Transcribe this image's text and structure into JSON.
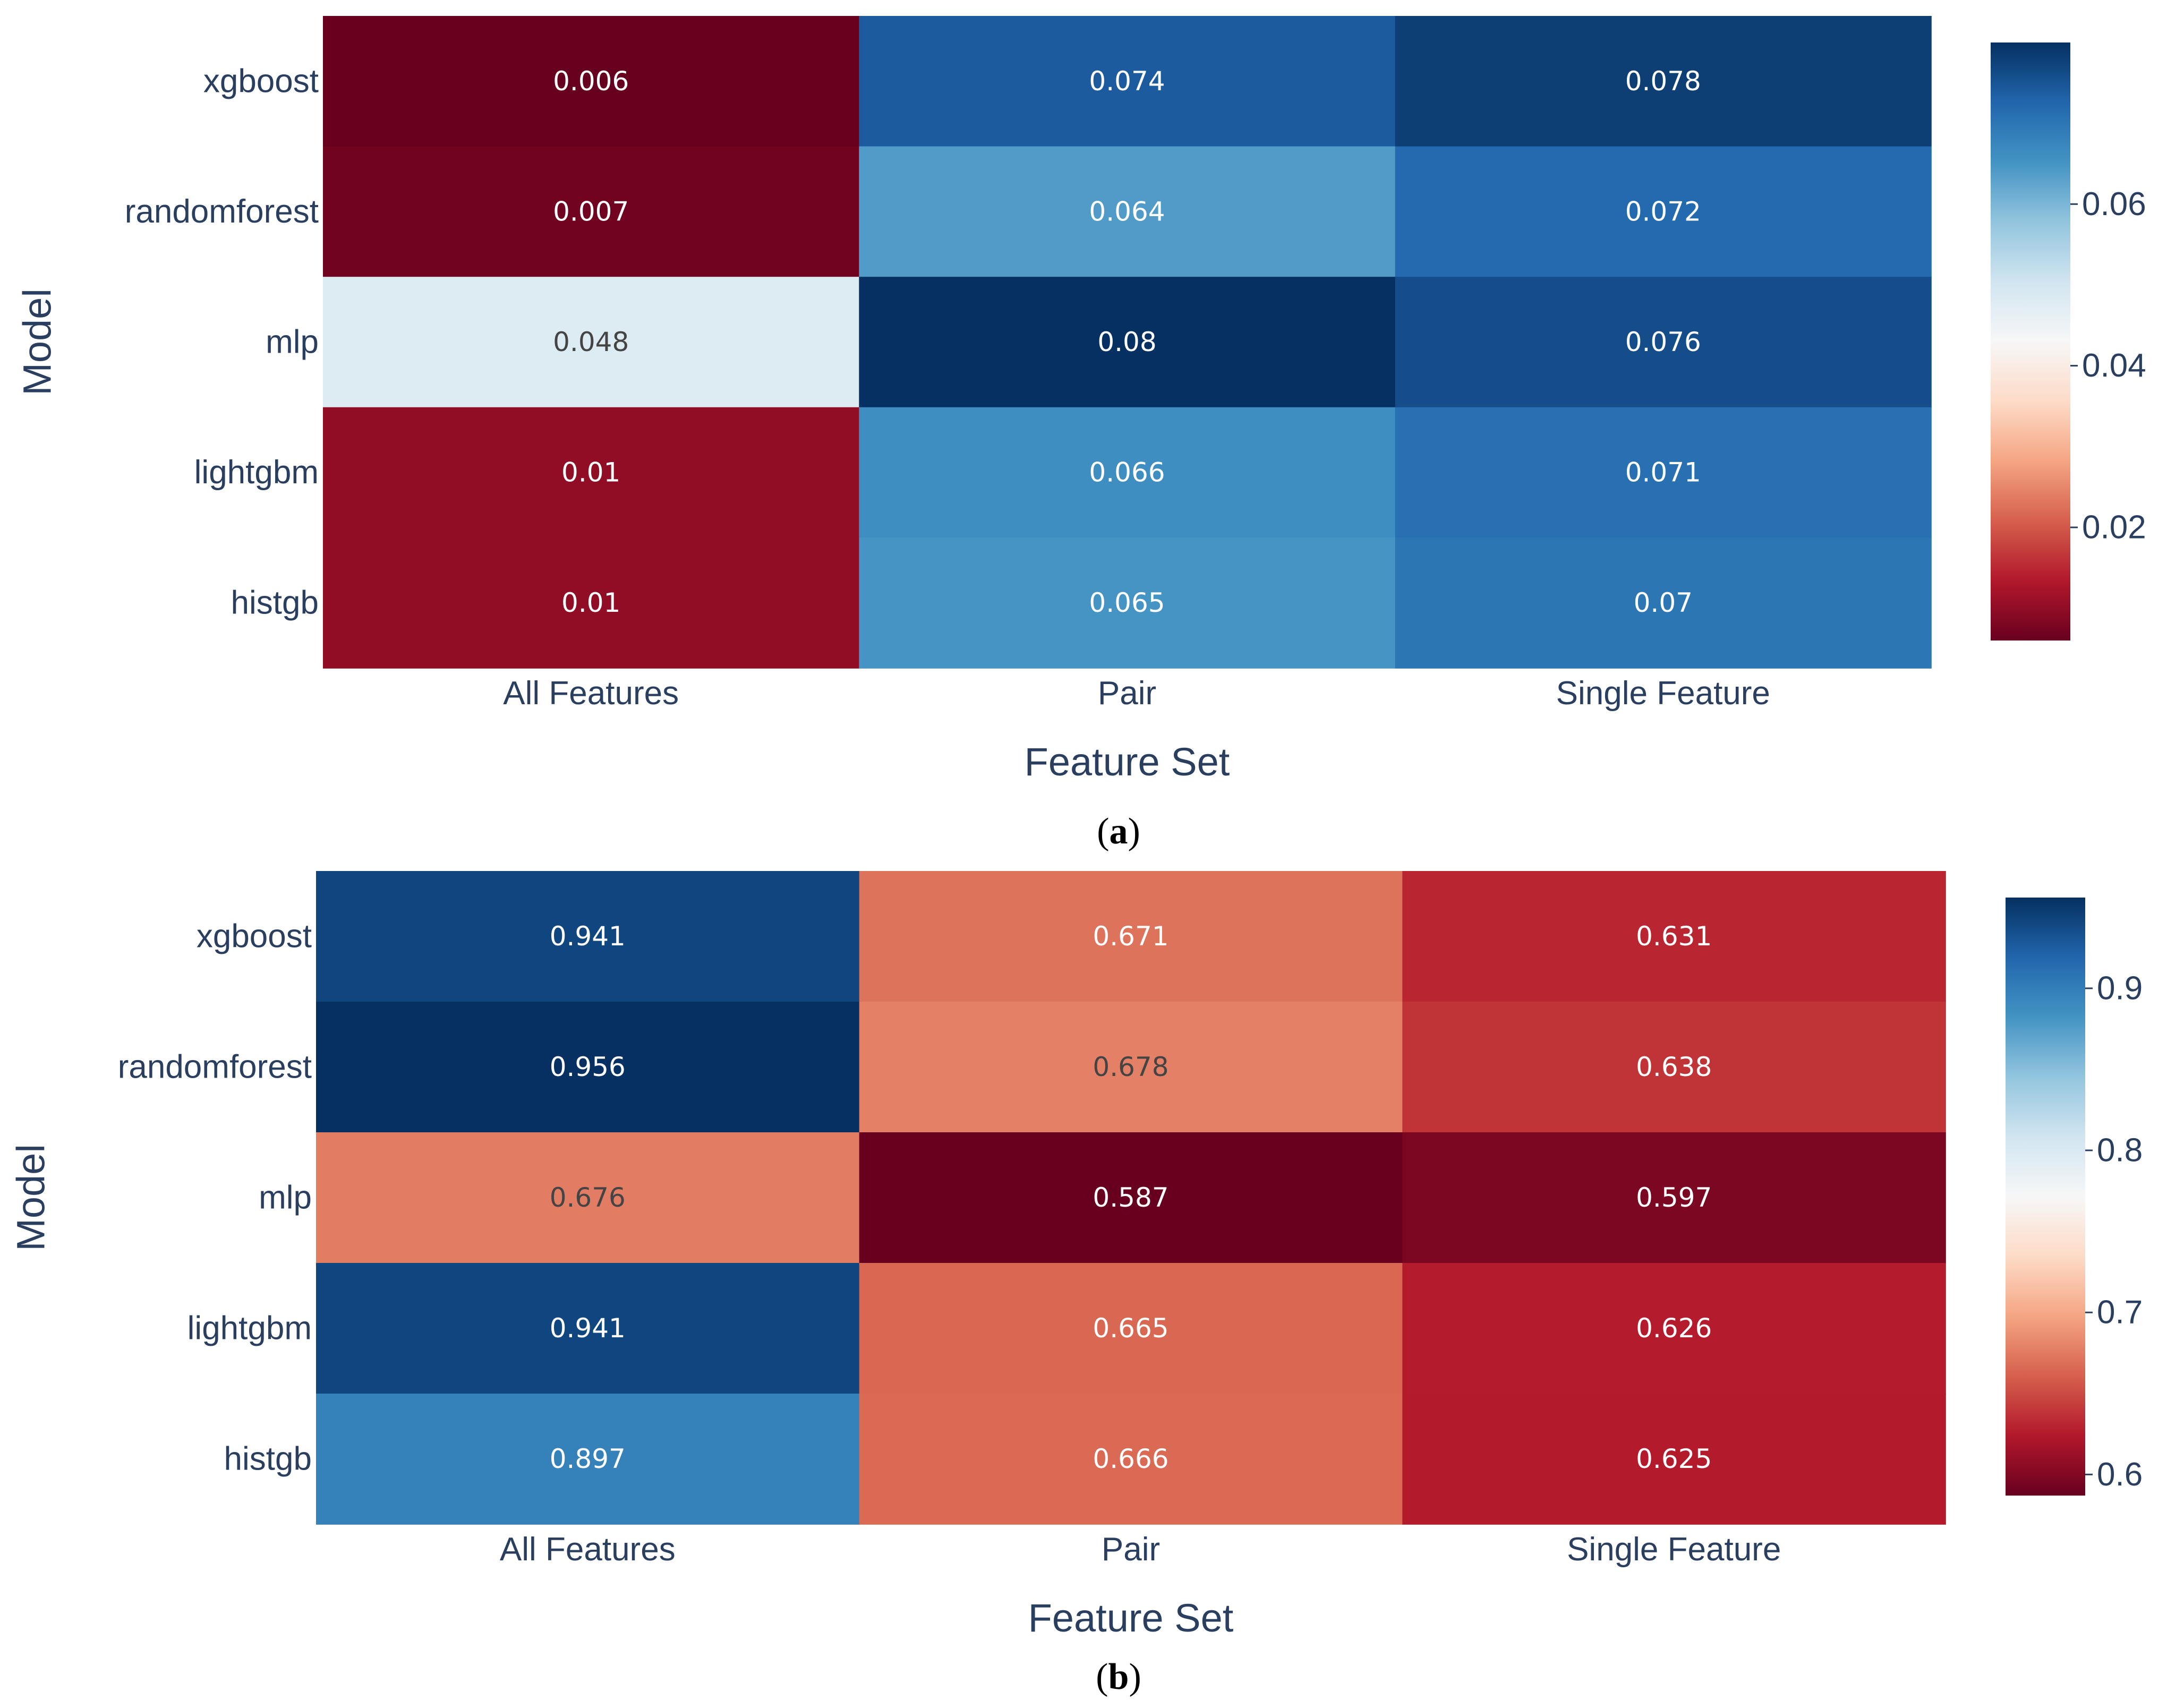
{
  "chart_data": [
    {
      "type": "heatmap",
      "caption_letter": "a",
      "xlabel": "Feature Set",
      "ylabel": "Model",
      "x": [
        "All Features",
        "Pair",
        "Single Feature"
      ],
      "y": [
        "xgboost",
        "randomforest",
        "mlp",
        "lightgbm",
        "histgb"
      ],
      "z": [
        [
          0.006,
          0.074,
          0.078
        ],
        [
          0.007,
          0.064,
          0.072
        ],
        [
          0.048,
          0.08,
          0.076
        ],
        [
          0.01,
          0.066,
          0.071
        ],
        [
          0.01,
          0.065,
          0.07
        ]
      ],
      "z_labels": [
        [
          "0.006",
          "0.074",
          "0.078"
        ],
        [
          "0.007",
          "0.064",
          "0.072"
        ],
        [
          "0.048",
          "0.08",
          "0.076"
        ],
        [
          "0.01",
          "0.066",
          "0.071"
        ],
        [
          "0.01",
          "0.065",
          "0.07"
        ]
      ],
      "colorscale": "RdBu",
      "zmin": 0.006,
      "zmax": 0.08,
      "colorbar_ticks": [
        0.02,
        0.04,
        0.06
      ],
      "colorbar_tick_labels": [
        "0.02",
        "0.04",
        "0.06"
      ]
    },
    {
      "type": "heatmap",
      "caption_letter": "b",
      "xlabel": "Feature Set",
      "ylabel": "Model",
      "x": [
        "All Features",
        "Pair",
        "Single Feature"
      ],
      "y": [
        "xgboost",
        "randomforest",
        "mlp",
        "lightgbm",
        "histgb"
      ],
      "z": [
        [
          0.941,
          0.671,
          0.631
        ],
        [
          0.956,
          0.678,
          0.638
        ],
        [
          0.676,
          0.587,
          0.597
        ],
        [
          0.941,
          0.665,
          0.626
        ],
        [
          0.897,
          0.666,
          0.625
        ]
      ],
      "z_labels": [
        [
          "0.941",
          "0.671",
          "0.631"
        ],
        [
          "0.956",
          "0.678",
          "0.638"
        ],
        [
          "0.676",
          "0.587",
          "0.597"
        ],
        [
          "0.941",
          "0.665",
          "0.626"
        ],
        [
          "0.897",
          "0.666",
          "0.625"
        ]
      ],
      "colorscale": "RdBu",
      "zmin": 0.587,
      "zmax": 0.956,
      "colorbar_ticks": [
        0.6,
        0.7,
        0.8,
        0.9
      ],
      "colorbar_tick_labels": [
        "0.6",
        "0.7",
        "0.8",
        "0.9"
      ]
    }
  ],
  "colors": {
    "scale": [
      "#67001f",
      "#b2182b",
      "#d6604d",
      "#f4a582",
      "#fddbc7",
      "#f7f7f7",
      "#d1e5f0",
      "#92c5de",
      "#4393c3",
      "#2166ac",
      "#053061"
    ],
    "axis_text": "#2a3f5f",
    "caption_text": "#000000"
  }
}
